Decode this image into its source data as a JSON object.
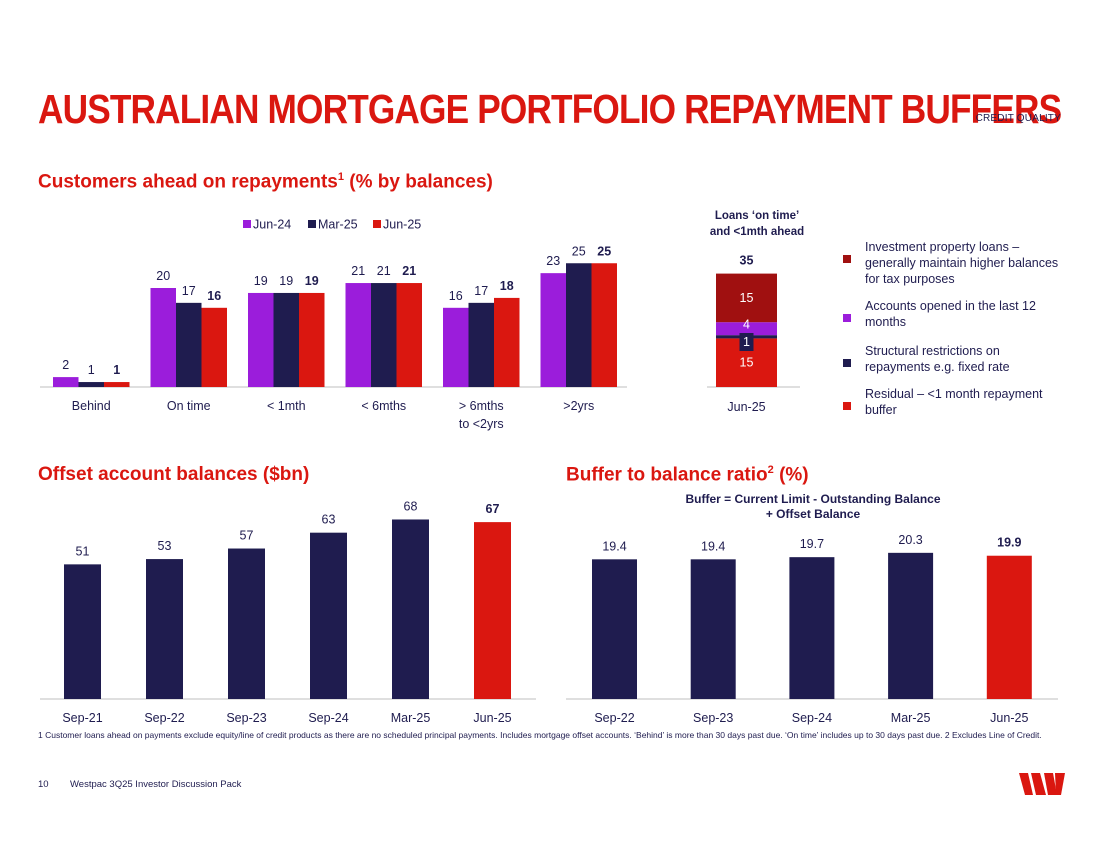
{
  "header": {
    "title": "AUSTRALIAN MORTGAGE PORTFOLIO REPAYMENT BUFFERS",
    "section_tag": "CREDIT QUALITY"
  },
  "colors": {
    "red": "#da1710",
    "navy": "#1f1c4f",
    "purple": "#9b1ddb",
    "dark_red": "#a01010"
  },
  "chart_data": [
    {
      "type": "bar",
      "title": "Customers ahead on repayments",
      "title_sup": "1",
      "title_suffix": "(% by balances)",
      "categories": [
        "Behind",
        "On time",
        "< 1mth",
        "< 6mths",
        "> 6mths to <2yrs",
        ">2yrs"
      ],
      "category_lines": [
        [
          "Behind"
        ],
        [
          "On time"
        ],
        [
          "< 1mth"
        ],
        [
          "< 6mths"
        ],
        [
          "> 6mths",
          "to <2yrs"
        ],
        [
          ">2yrs"
        ]
      ],
      "series": [
        {
          "name": "Jun-24",
          "values": [
            2,
            20,
            19,
            21,
            16,
            23
          ],
          "color": "#9b1ddb"
        },
        {
          "name": "Mar-25",
          "values": [
            1,
            17,
            19,
            21,
            17,
            25
          ],
          "color": "#1f1c4f"
        },
        {
          "name": "Jun-25",
          "values": [
            1,
            16,
            19,
            21,
            18,
            25
          ],
          "color": "#da1710"
        }
      ],
      "highlight_series": "Jun-25",
      "legend": "top",
      "ylim": [
        0,
        28
      ]
    },
    {
      "type": "stacked-bar",
      "title_lines": [
        "Loans ‘on time’",
        "and <1mth ahead"
      ],
      "category": "Jun-25",
      "total": 35,
      "segments": [
        {
          "label": "Residual – <1 month repayment buffer",
          "value": 15,
          "color": "#da1710"
        },
        {
          "label": "Structural restrictions on repayments e.g. fixed rate",
          "value": 1,
          "color": "#1f1c4f"
        },
        {
          "label": "Accounts opened in the last 12 months",
          "value": 4,
          "color": "#9b1ddb"
        },
        {
          "label": "Investment property loans – generally maintain higher balances for tax purposes",
          "value": 15,
          "color": "#a01010"
        }
      ],
      "legend_order": [
        "Investment property loans – generally maintain higher balances for tax purposes",
        "Accounts opened in the last 12 months",
        "Structural restrictions on repayments e.g. fixed rate",
        "Residual – <1 month repayment buffer"
      ],
      "legend": "right",
      "ylim": [
        0,
        40
      ]
    },
    {
      "type": "bar",
      "title": "Offset account balances ($bn)",
      "categories": [
        "Sep-21",
        "Sep-22",
        "Sep-23",
        "Sep-24",
        "Mar-25",
        "Jun-25"
      ],
      "values": [
        51,
        53,
        57,
        63,
        68,
        67
      ],
      "value_labels": [
        "51",
        "53",
        "57",
        "63",
        "68",
        "67"
      ],
      "highlight_index": 5,
      "ylim": [
        0,
        75
      ]
    },
    {
      "type": "bar",
      "title": "Buffer to balance ratio",
      "title_sup": "2",
      "title_suffix": "(%)",
      "subtitle_lines": [
        "Buffer = Current Limit - Outstanding Balance",
        "+ Offset Balance"
      ],
      "categories": [
        "Sep-22",
        "Sep-23",
        "Sep-24",
        "Mar-25",
        "Jun-25"
      ],
      "values": [
        19.4,
        19.4,
        19.7,
        20.3,
        19.9
      ],
      "value_labels": [
        "19.4",
        "19.4",
        "19.7",
        "20.3",
        "19.9"
      ],
      "highlight_index": 4,
      "ylim": [
        0,
        22
      ]
    }
  ],
  "footnote": "1 Customer loans ahead on payments exclude equity/line of credit products as there are no scheduled principal payments. Includes mortgage offset accounts. ‘Behind’ is more than 30 days past due. ‘On time’ includes up to 30 days past due. 2 Excludes Line of Credit.",
  "footer": {
    "page_number": "10",
    "label": "Westpac 3Q25 Investor Discussion Pack"
  },
  "logo": {
    "icon": "westpac-w-logo"
  }
}
